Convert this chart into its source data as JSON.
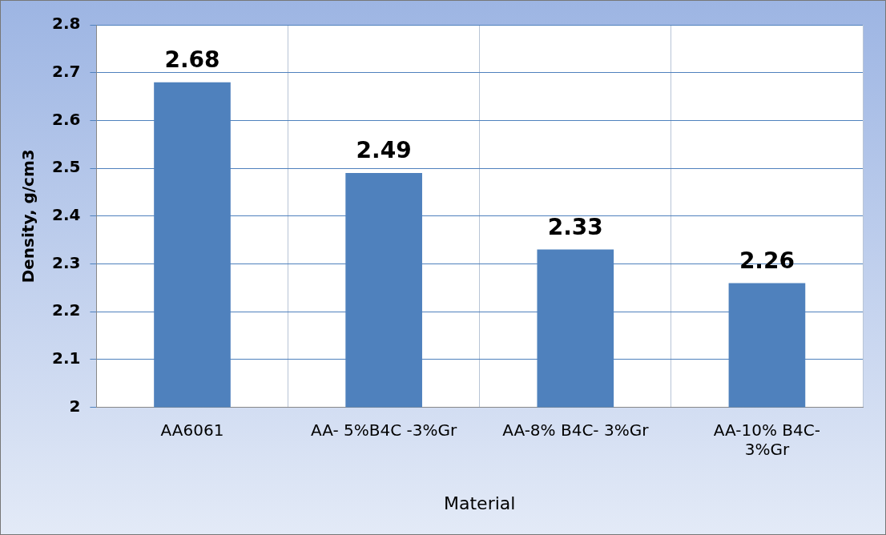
{
  "chart_data": {
    "type": "bar",
    "xlabel": "Material",
    "ylabel": "Density, g/cm3",
    "categories": [
      "AA6061",
      "AA- 5%B4C -3%Gr",
      "AA-8% B4C- 3%Gr",
      "AA-10% B4C-\n3%Gr"
    ],
    "values": [
      2.68,
      2.49,
      2.33,
      2.26
    ],
    "color": "#4f81bd",
    "ylim": [
      2,
      2.8
    ],
    "yticks": [
      2,
      2.1,
      2.2,
      2.3,
      2.4,
      2.5,
      2.6,
      2.7,
      2.8
    ],
    "grid": true,
    "data_labels": true,
    "legend": false
  }
}
